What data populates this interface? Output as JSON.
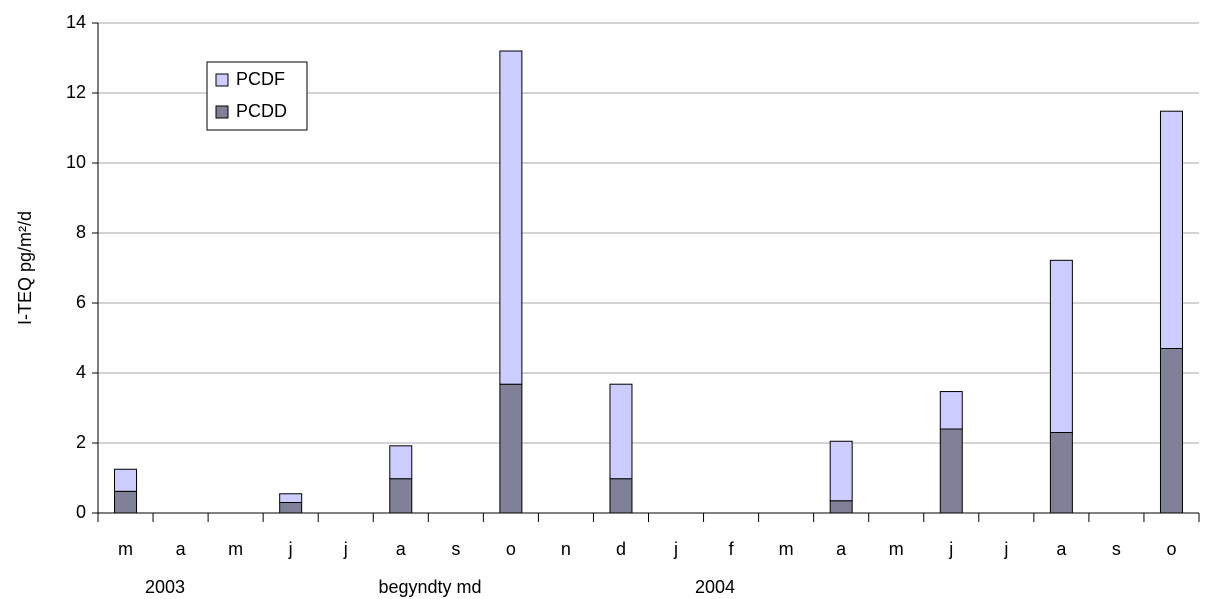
{
  "chart_data": {
    "type": "stacked_bar",
    "y_label": "I-TEQ pg/m²/d",
    "categories": [
      "m",
      "a",
      "m",
      "j",
      "j",
      "a",
      "s",
      "o",
      "n",
      "d",
      "j",
      "f",
      "m",
      "a",
      "m",
      "j",
      "j",
      "a",
      "s",
      "o"
    ],
    "series": [
      {
        "name": "PCDD",
        "color": "#808099",
        "values": [
          0.62,
          0,
          0,
          0.3,
          0,
          0.98,
          0,
          3.68,
          0,
          0.98,
          0,
          0,
          0,
          0.35,
          0,
          2.4,
          0,
          2.3,
          0,
          4.7
        ]
      },
      {
        "name": "PCDF",
        "color": "#ccccff",
        "values": [
          0.63,
          0,
          0,
          0.25,
          0,
          0.94,
          0,
          9.52,
          0,
          2.7,
          0,
          0,
          0,
          1.7,
          0,
          1.07,
          0,
          4.92,
          0,
          6.78
        ]
      }
    ],
    "annotations": [
      "2003",
      "begyndty md",
      "2004"
    ],
    "ylim": [
      0,
      14
    ],
    "yticks": [
      0,
      2,
      4,
      6,
      8,
      10,
      12,
      14
    ],
    "grid": true
  }
}
